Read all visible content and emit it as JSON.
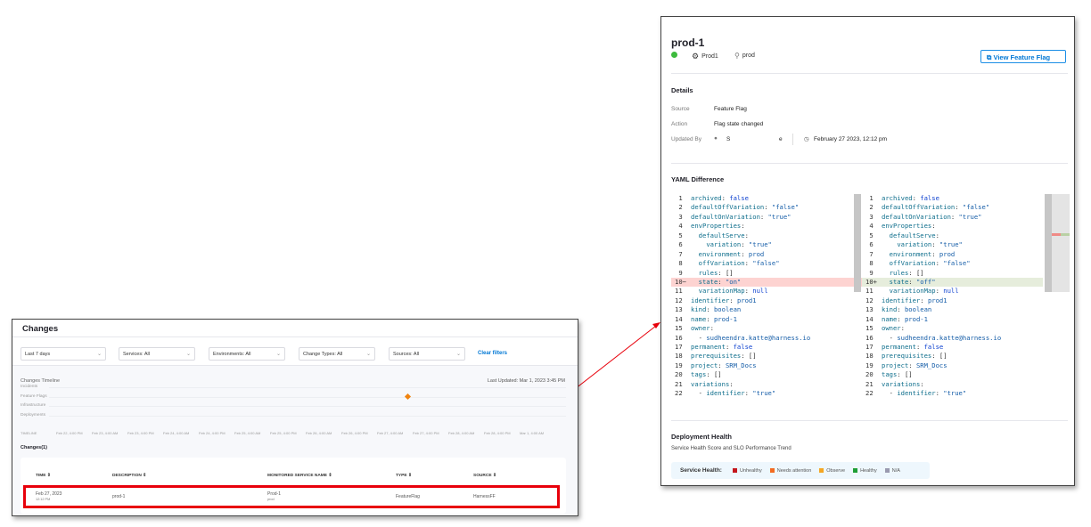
{
  "changes_page": {
    "title": "Changes",
    "filters": [
      "Last 7 days",
      "Services: All",
      "Environments: All",
      "Change Types: All",
      "Sources: All"
    ],
    "clear_filters": "Clear filters",
    "timeline_title": "Changes Timeline",
    "last_updated": "Last Updated: Mar 1, 2023 3:45 PM",
    "lanes": [
      "Incidents",
      "Feature Flags",
      "Infrastructure",
      "Deployments"
    ],
    "timeline_label": "TIMELINE",
    "ticks": [
      "Feb 22, 4:00 PM",
      "Feb 23, 4:00 AM",
      "Feb 23, 4:00 PM",
      "Feb 24, 4:00 AM",
      "Feb 24, 4:00 PM",
      "Feb 25, 4:00 AM",
      "Feb 25, 4:00 PM",
      "Feb 26, 4:00 AM",
      "Feb 26, 4:00 PM",
      "Feb 27, 4:00 AM",
      "Feb 27, 4:00 PM",
      "Feb 28, 4:00 AM",
      "Feb 28, 4:00 PM",
      "Mar 1, 4:00 AM"
    ],
    "changes_count": "Changes(1)",
    "columns": [
      "TIME",
      "DESCRIPTION",
      "MONITORED SERVICE NAME",
      "TYPE",
      "SOURCE"
    ],
    "row": {
      "date": "Feb 27, 2023",
      "time": "12:12 PM",
      "description": "prod-1",
      "service": "Prod-1",
      "service_env": "prod",
      "type": "FeatureFlag",
      "source": "HarnessFF"
    }
  },
  "detail": {
    "title": "prod-1",
    "service": "Prod1",
    "environment": "prod",
    "view_button": "View Feature Flag",
    "details_heading": "Details",
    "source_label": "Source",
    "source": "Feature Flag",
    "action_label": "Action",
    "action": "Flag state changed",
    "updated_by_label": "Updated By",
    "updated_by_start": "S",
    "updated_by_end": "e",
    "updated_at": "February 27 2023, 12:12 pm",
    "yaml_heading": "YAML Difference",
    "yaml_before": [
      "archived: false",
      "defaultOffVariation: \"false\"",
      "defaultOnVariation: \"true\"",
      "envProperties:",
      "  defaultServe:",
      "    variation: \"true\"",
      "  environment: prod",
      "  offVariation: \"false\"",
      "  rules: []",
      "  state: \"on\"",
      "  variationMap: null",
      "identifier: prod1",
      "kind: boolean",
      "name: prod-1",
      "owner:",
      "  - sudheendra.katte@harness.io",
      "permanent: false",
      "prerequisites: []",
      "project: SRM_Docs",
      "tags: []",
      "variations:",
      "  - identifier: \"true\""
    ],
    "yaml_after": [
      "archived: false",
      "defaultOffVariation: \"false\"",
      "defaultOnVariation: \"true\"",
      "envProperties:",
      "  defaultServe:",
      "    variation: \"true\"",
      "  environment: prod",
      "  offVariation: \"false\"",
      "  rules: []",
      "  state: \"off\"",
      "  variationMap: null",
      "identifier: prod1",
      "kind: boolean",
      "name: prod-1",
      "owner:",
      "  - sudheendra.katte@harness.io",
      "permanent: false",
      "prerequisites: []",
      "project: SRM_Docs",
      "tags: []",
      "variations:",
      "  - identifier: \"true\""
    ],
    "changed_line": 10,
    "deployment_heading": "Deployment Health",
    "deployment_sub": "Service Health Score and SLO Performance Trend",
    "health_label": "Service Health:",
    "legend": [
      {
        "label": "Unhealthy",
        "color": "#c4161c"
      },
      {
        "label": "Needs attention",
        "color": "#f36b21"
      },
      {
        "label": "Observe",
        "color": "#f5a623"
      },
      {
        "label": "Healthy",
        "color": "#1e9e36"
      },
      {
        "label": "N/A",
        "color": "#9a9ab0"
      }
    ]
  }
}
